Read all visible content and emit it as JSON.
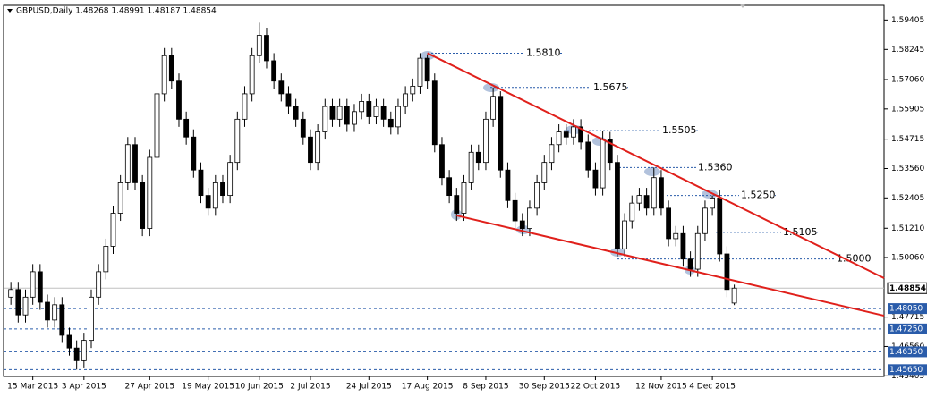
{
  "chart_data": {
    "type": "candlestick",
    "title": "GBPUSD,Daily  1.48268 1.48991 1.48187 1.48854",
    "open": [
      1.485,
      1.488,
      1.478,
      1.485,
      1.495,
      1.483,
      1.476,
      1.482,
      1.47,
      1.465,
      1.46,
      1.468,
      1.485,
      1.495,
      1.505,
      1.518,
      1.53,
      1.545,
      1.53,
      1.512,
      1.54,
      1.565,
      1.58,
      1.57,
      1.555,
      1.548,
      1.535,
      1.525,
      1.52,
      1.53,
      1.525,
      1.538,
      1.555,
      1.565,
      1.58,
      1.588,
      1.578,
      1.57,
      1.565,
      1.56,
      1.555,
      1.548,
      1.538,
      1.55,
      1.56,
      1.555,
      1.56,
      1.553,
      1.558,
      1.562,
      1.556,
      1.56,
      1.555,
      1.552,
      1.56,
      1.565,
      1.568,
      1.579,
      1.57,
      1.545,
      1.532,
      1.525,
      1.518,
      1.53,
      1.542,
      1.538,
      1.555,
      1.564,
      1.535,
      1.523,
      1.515,
      1.512,
      1.52,
      1.53,
      1.538,
      1.545,
      1.55,
      1.548,
      1.552,
      1.546,
      1.535,
      1.528,
      1.547,
      1.538,
      1.504,
      1.515,
      1.522,
      1.525,
      1.52,
      1.532,
      1.52,
      1.508,
      1.51,
      1.5,
      1.496,
      1.51,
      1.52,
      1.524,
      1.502,
      1.48268
    ],
    "high": [
      1.491,
      1.491,
      1.488,
      1.498,
      1.498,
      1.486,
      1.485,
      1.485,
      1.473,
      1.468,
      1.471,
      1.488,
      1.498,
      1.508,
      1.521,
      1.533,
      1.548,
      1.548,
      1.533,
      1.543,
      1.568,
      1.583,
      1.583,
      1.573,
      1.558,
      1.551,
      1.538,
      1.528,
      1.533,
      1.533,
      1.541,
      1.558,
      1.568,
      1.583,
      1.593,
      1.591,
      1.581,
      1.573,
      1.568,
      1.563,
      1.558,
      1.551,
      1.553,
      1.563,
      1.563,
      1.563,
      1.563,
      1.561,
      1.565,
      1.565,
      1.563,
      1.563,
      1.558,
      1.563,
      1.568,
      1.571,
      1.581,
      1.5805,
      1.573,
      1.548,
      1.535,
      1.528,
      1.533,
      1.545,
      1.545,
      1.558,
      1.5675,
      1.566,
      1.538,
      1.526,
      1.518,
      1.523,
      1.533,
      1.541,
      1.548,
      1.553,
      1.553,
      1.555,
      1.555,
      1.549,
      1.538,
      1.5505,
      1.55,
      1.541,
      1.518,
      1.525,
      1.528,
      1.528,
      1.536,
      1.535,
      1.523,
      1.513,
      1.513,
      1.503,
      1.513,
      1.523,
      1.525,
      1.527,
      1.505,
      1.48991
    ],
    "low": [
      1.482,
      1.475,
      1.475,
      1.482,
      1.48,
      1.473,
      1.473,
      1.467,
      1.462,
      1.4565,
      1.457,
      1.465,
      1.482,
      1.492,
      1.502,
      1.515,
      1.527,
      1.527,
      1.509,
      1.509,
      1.537,
      1.562,
      1.567,
      1.552,
      1.545,
      1.532,
      1.522,
      1.517,
      1.517,
      1.522,
      1.522,
      1.535,
      1.552,
      1.562,
      1.577,
      1.575,
      1.567,
      1.562,
      1.557,
      1.552,
      1.545,
      1.535,
      1.535,
      1.547,
      1.552,
      1.552,
      1.55,
      1.55,
      1.555,
      1.553,
      1.553,
      1.552,
      1.549,
      1.549,
      1.557,
      1.562,
      1.565,
      1.567,
      1.542,
      1.529,
      1.522,
      1.515,
      1.515,
      1.527,
      1.535,
      1.535,
      1.552,
      1.532,
      1.52,
      1.512,
      1.509,
      1.509,
      1.517,
      1.527,
      1.535,
      1.542,
      1.545,
      1.545,
      1.543,
      1.532,
      1.525,
      1.525,
      1.535,
      1.501,
      1.501,
      1.512,
      1.519,
      1.517,
      1.517,
      1.517,
      1.505,
      1.505,
      1.497,
      1.493,
      1.493,
      1.507,
      1.517,
      1.499,
      1.485,
      1.48187
    ],
    "close": [
      1.488,
      1.478,
      1.485,
      1.495,
      1.483,
      1.476,
      1.482,
      1.47,
      1.465,
      1.46,
      1.468,
      1.485,
      1.495,
      1.505,
      1.518,
      1.53,
      1.545,
      1.53,
      1.512,
      1.54,
      1.565,
      1.58,
      1.57,
      1.555,
      1.548,
      1.535,
      1.525,
      1.52,
      1.53,
      1.525,
      1.538,
      1.555,
      1.565,
      1.58,
      1.588,
      1.578,
      1.57,
      1.565,
      1.56,
      1.555,
      1.548,
      1.538,
      1.55,
      1.56,
      1.555,
      1.56,
      1.553,
      1.558,
      1.562,
      1.556,
      1.56,
      1.555,
      1.552,
      1.56,
      1.565,
      1.568,
      1.579,
      1.57,
      1.545,
      1.532,
      1.525,
      1.518,
      1.53,
      1.542,
      1.538,
      1.555,
      1.564,
      1.535,
      1.523,
      1.515,
      1.512,
      1.52,
      1.53,
      1.538,
      1.545,
      1.55,
      1.548,
      1.552,
      1.546,
      1.535,
      1.528,
      1.547,
      1.538,
      1.504,
      1.515,
      1.522,
      1.525,
      1.52,
      1.532,
      1.52,
      1.508,
      1.51,
      1.5,
      1.496,
      1.51,
      1.52,
      1.524,
      1.502,
      1.488,
      1.48854
    ],
    "xlim": [
      -1,
      119.5
    ],
    "xticks": [
      {
        "value": 3,
        "label": "15 Mar 2015"
      },
      {
        "value": 10,
        "label": "3 Apr 2015"
      },
      {
        "value": 19,
        "label": "27 Apr 2015"
      },
      {
        "value": 27,
        "label": "19 May 2015"
      },
      {
        "value": 34,
        "label": "10 Jun 2015"
      },
      {
        "value": 41,
        "label": "2 Jul 2015"
      },
      {
        "value": 49,
        "label": "24 Jul 2015"
      },
      {
        "value": 57,
        "label": "17 Aug 2015"
      },
      {
        "value": 65,
        "label": "8 Sep 2015"
      },
      {
        "value": 73,
        "label": "30 Sep 2015"
      },
      {
        "value": 80,
        "label": "22 Oct 2015"
      },
      {
        "value": 89,
        "label": "12 Nov 2015"
      },
      {
        "value": 96,
        "label": "4 Dec 2015"
      }
    ],
    "ylim": [
      1.4538,
      1.5998
    ],
    "yticks": [
      1.59405,
      1.58245,
      {
        "value": 1.5706,
        "label": "1.57060"
      },
      1.55905,
      1.54715,
      {
        "value": 1.5356,
        "label": "1.53560"
      },
      1.52405,
      {
        "value": 1.5121,
        "label": "1.51210"
      },
      {
        "value": 1.5006,
        "label": "1.50060"
      },
      1.47715,
      {
        "value": 1.4656,
        "label": "1.46560"
      },
      1.45405
    ],
    "current_price": {
      "value": 1.48854,
      "label": "1.48854"
    },
    "price_lines": [
      {
        "value": 1.4805,
        "label": "1.48050"
      },
      {
        "value": 1.4725,
        "label": "1.47250"
      },
      {
        "value": 1.4635,
        "label": "1.46350"
      },
      {
        "value": 1.4565,
        "label": "1.45650"
      }
    ],
    "levels": [
      {
        "value": 1.581,
        "label": "1.5810"
      },
      {
        "value": 1.5675,
        "label": "1.5675"
      },
      {
        "value": 1.5505,
        "label": "1.5505"
      },
      {
        "value": 1.536,
        "label": "1.5360"
      },
      {
        "value": 1.525,
        "label": "1.5250"
      },
      {
        "value": 1.5105,
        "label": "1.5105"
      },
      {
        "value": 1.5,
        "label": "1.5000"
      }
    ],
    "trendlines": [
      {
        "x": [
          57,
          119.5
        ],
        "y": [
          1.581,
          1.4925
        ]
      },
      {
        "x": [
          61,
          119.5
        ],
        "y": [
          1.5171,
          1.4777
        ]
      }
    ],
    "trendline_color": "#e0201b",
    "level_color": "#2a5caa"
  }
}
